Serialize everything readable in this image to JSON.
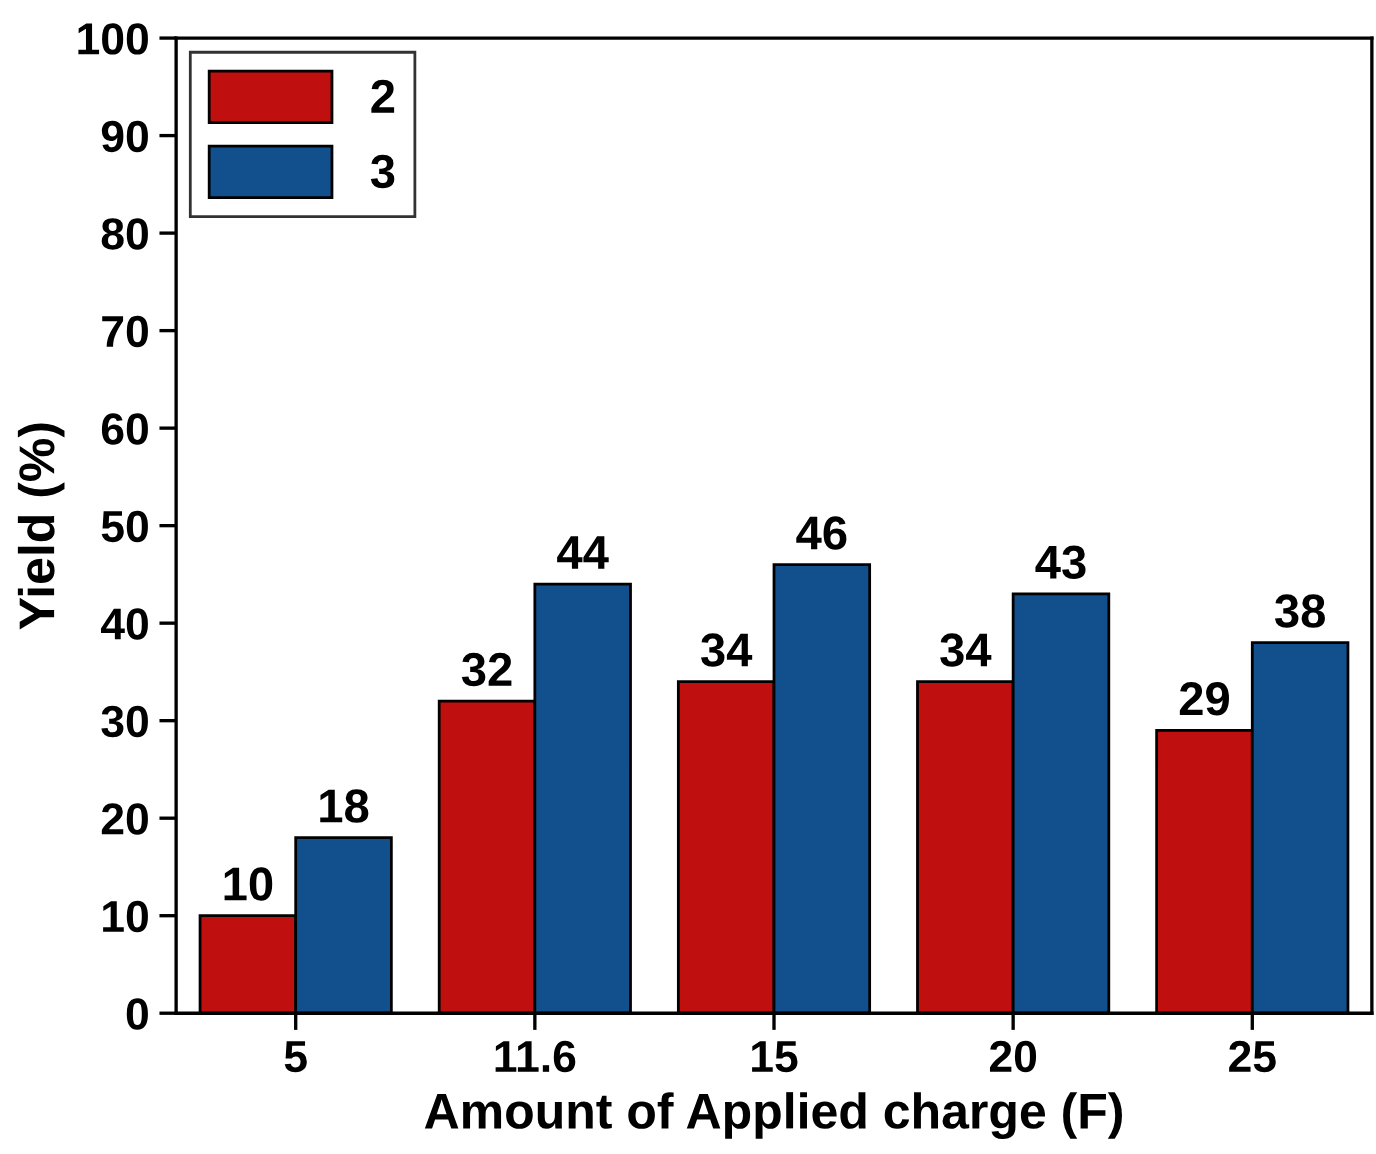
{
  "chart_data": {
    "type": "bar",
    "xlabel": "Amount of Applied charge (F)",
    "ylabel": "Yield (%)",
    "categories": [
      "5",
      "11.6",
      "15",
      "20",
      "25"
    ],
    "series": [
      {
        "name": "2",
        "color": "#c00f0f",
        "values": [
          10,
          32,
          34,
          34,
          29
        ]
      },
      {
        "name": "3",
        "color": "#124f8d",
        "values": [
          18,
          44,
          46,
          43,
          38
        ]
      }
    ],
    "ylim": [
      0,
      100
    ],
    "yticks": [
      0,
      10,
      20,
      30,
      40,
      50,
      60,
      70,
      80,
      90,
      100
    ],
    "data_labels": true,
    "legend": "top left",
    "grid": false
  }
}
